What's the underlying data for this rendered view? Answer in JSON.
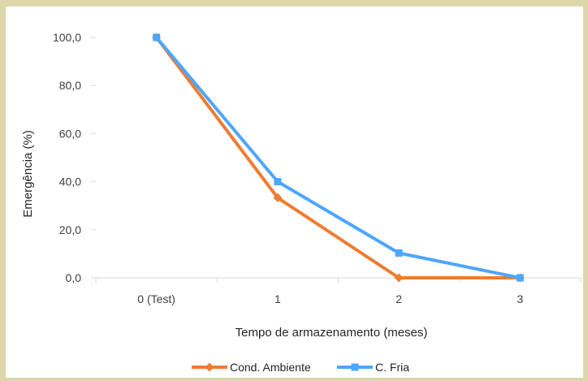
{
  "chart_data": {
    "type": "line",
    "categories": [
      "0 (Test)",
      "1",
      "2",
      "3"
    ],
    "yticks": [
      "0,0",
      "20,0",
      "40,0",
      "60,0",
      "80,0",
      "100,0"
    ],
    "ylim": [
      0,
      100
    ],
    "xlabel": "Tempo de armazenamento (meses)",
    "ylabel": "Emergência (%)",
    "grid": false,
    "legend": "bottom",
    "series": [
      {
        "name": "Cond. Ambiente",
        "values": [
          100,
          33.3,
          0,
          0
        ],
        "color": "#ed7d31",
        "marker": "diamond"
      },
      {
        "name": "C. Fria",
        "values": [
          100,
          40,
          10.3,
          0
        ],
        "color": "#4da6ff",
        "marker": "square"
      }
    ]
  }
}
